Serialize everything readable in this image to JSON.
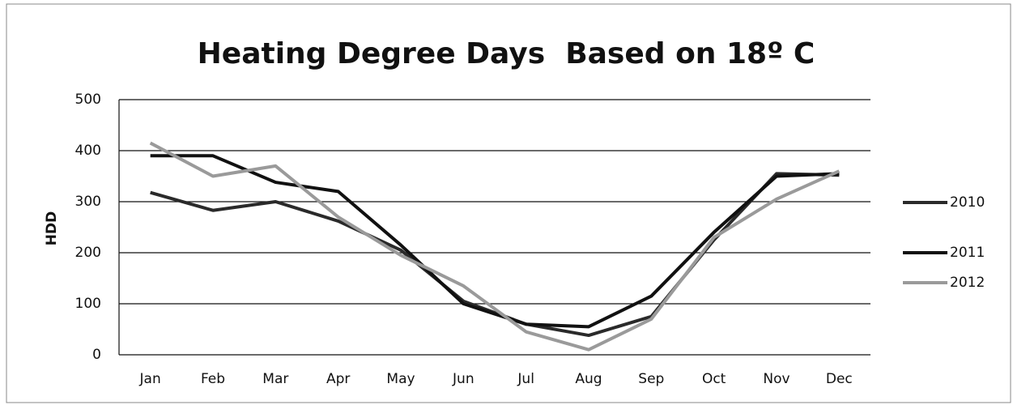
{
  "chart_data": {
    "type": "line",
    "title": "Heating Degree Days  Based on 18º C",
    "y_label": "HDD",
    "categories": [
      "Jan",
      "Feb",
      "Mar",
      "Apr",
      "May",
      "Jun",
      "Jul",
      "Aug",
      "Sep",
      "Oct",
      "Nov",
      "Dec"
    ],
    "series": [
      {
        "name": "2010",
        "color": "#2a2a2a",
        "values": [
          318,
          283,
          300,
          262,
          205,
          105,
          60,
          38,
          75,
          225,
          355,
          352
        ]
      },
      {
        "name": "2011",
        "color": "#111111",
        "values": [
          390,
          390,
          338,
          320,
          215,
          100,
          60,
          55,
          115,
          240,
          350,
          355
        ]
      },
      {
        "name": "2012",
        "color": "#9a9a9a",
        "values": [
          415,
          350,
          370,
          270,
          195,
          135,
          45,
          10,
          70,
          230,
          305,
          360
        ]
      }
    ],
    "ylim": [
      0,
      500
    ],
    "yticks": [
      0,
      100,
      200,
      300,
      400,
      500
    ],
    "grid": true,
    "legend": "right"
  }
}
